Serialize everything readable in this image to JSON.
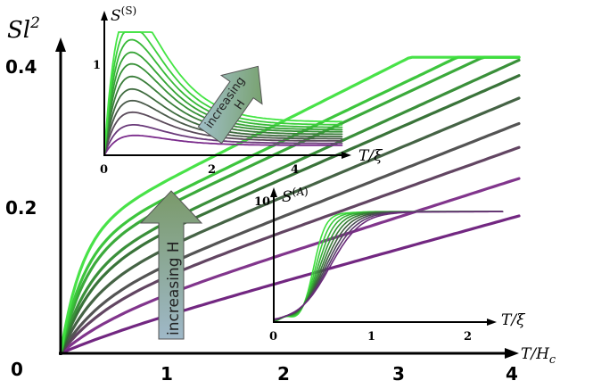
{
  "chart_data": [
    {
      "id": "main",
      "type": "line",
      "ylabel_base": "Sl",
      "ylabel_sup": "2",
      "xlabel_num": "T/H",
      "xlabel_sub": "c",
      "xlim": [
        0,
        4
      ],
      "ylim": [
        0,
        0.42
      ],
      "x_ticks": [
        "0",
        "1",
        "2",
        "3",
        "4"
      ],
      "y_ticks": [
        "0",
        "0.2",
        "0.4"
      ],
      "annotation": "increasing H",
      "series_shape": {
        "rise": [
          0.015,
          0.04,
          0.06,
          0.07,
          0.09,
          0.11,
          0.12,
          0.14,
          0.15,
          0.17
        ],
        "slope": [
          0.045,
          0.052,
          0.058,
          0.064,
          0.068,
          0.071,
          0.074,
          0.076,
          0.078,
          0.082
        ],
        "rate": [
          1.6,
          2.2,
          2.6,
          3.0,
          3.4,
          3.8,
          4.2,
          4.6,
          5.0,
          5.5
        ]
      },
      "colors": [
        "#6a1b7a",
        "#7a2a86",
        "#5a3b5a",
        "#4b4b4b",
        "#3b5b3b",
        "#2e6b2e",
        "#2f8a2f",
        "#30a530",
        "#33c233",
        "#3ee03e"
      ]
    },
    {
      "id": "inset-symmetric",
      "type": "line",
      "ylabel_base": "S",
      "ylabel_sup": "(S)",
      "xlabel": "T/ξ",
      "xlim": [
        0,
        5.2
      ],
      "ylim": [
        0,
        1.5
      ],
      "x_ticks": [
        "0",
        "2",
        "4"
      ],
      "y_ticks": [
        "1"
      ],
      "annotation_line1": "increasing",
      "annotation_line2": "H",
      "peaks": [
        0.14,
        0.25,
        0.38,
        0.5,
        0.62,
        0.75,
        0.88,
        1.0,
        1.13,
        1.27,
        1.44
      ]
    },
    {
      "id": "inset-antisymmetric",
      "type": "line",
      "ylabel_base": "S",
      "ylabel_sup": "(A)",
      "xlabel": "T/ξ",
      "xlim": [
        0,
        2.3
      ],
      "ylim": [
        0,
        10.5
      ],
      "x_ticks": [
        "0",
        "1",
        "2"
      ],
      "y_ticks": [
        "10"
      ],
      "plateau": 8.9
    }
  ]
}
